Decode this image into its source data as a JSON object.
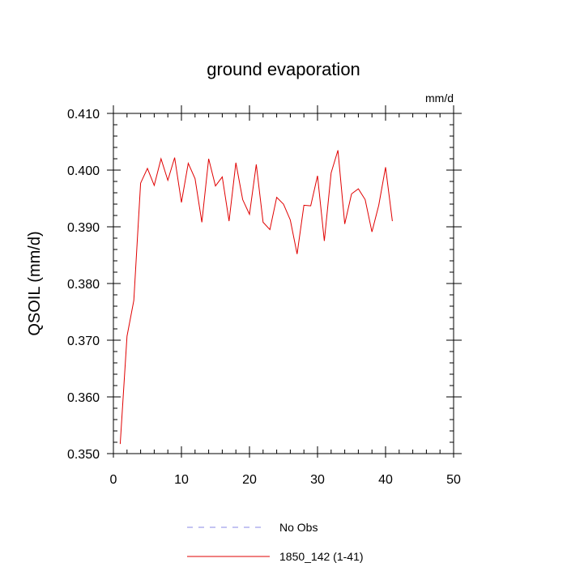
{
  "chart_data": {
    "type": "line",
    "title": "ground evaporation",
    "units": "mm/d",
    "xlabel": "",
    "ylabel": "QSOIL  (mm/d)",
    "xlim": [
      0,
      50
    ],
    "ylim": [
      0.35,
      0.41
    ],
    "x_ticks": [
      0,
      10,
      20,
      30,
      40,
      50
    ],
    "x_tick_labels": [
      "0",
      "10",
      "20",
      "30",
      "40",
      "50"
    ],
    "y_ticks": [
      0.35,
      0.36,
      0.37,
      0.38,
      0.39,
      0.4,
      0.41
    ],
    "y_tick_labels": [
      "0.350",
      "0.360",
      "0.370",
      "0.380",
      "0.390",
      "0.400",
      "0.410"
    ],
    "grid": false,
    "legend_placement": "bottom",
    "series": [
      {
        "name": "No Obs",
        "style": "dashed",
        "color": "#8a8ae6",
        "x": [],
        "values": []
      },
      {
        "name": "1850_142 (1-41)",
        "style": "solid",
        "color": "#e00000",
        "x": [
          1,
          2,
          3,
          4,
          5,
          6,
          7,
          8,
          9,
          10,
          11,
          12,
          13,
          14,
          15,
          16,
          17,
          18,
          19,
          20,
          21,
          22,
          23,
          24,
          25,
          26,
          27,
          28,
          29,
          30,
          31,
          32,
          33,
          34,
          35,
          36,
          37,
          38,
          39,
          40,
          41
        ],
        "values": [
          0.3517,
          0.3707,
          0.377,
          0.3977,
          0.4003,
          0.3973,
          0.402,
          0.3982,
          0.4022,
          0.3943,
          0.4012,
          0.3985,
          0.3908,
          0.402,
          0.3972,
          0.3988,
          0.391,
          0.4013,
          0.3948,
          0.3922,
          0.401,
          0.3908,
          0.3895,
          0.3952,
          0.394,
          0.3912,
          0.3852,
          0.3938,
          0.3937,
          0.399,
          0.3875,
          0.3995,
          0.4035,
          0.3905,
          0.3958,
          0.3967,
          0.3948,
          0.3891,
          0.3938,
          0.4005,
          0.391
        ]
      }
    ]
  }
}
